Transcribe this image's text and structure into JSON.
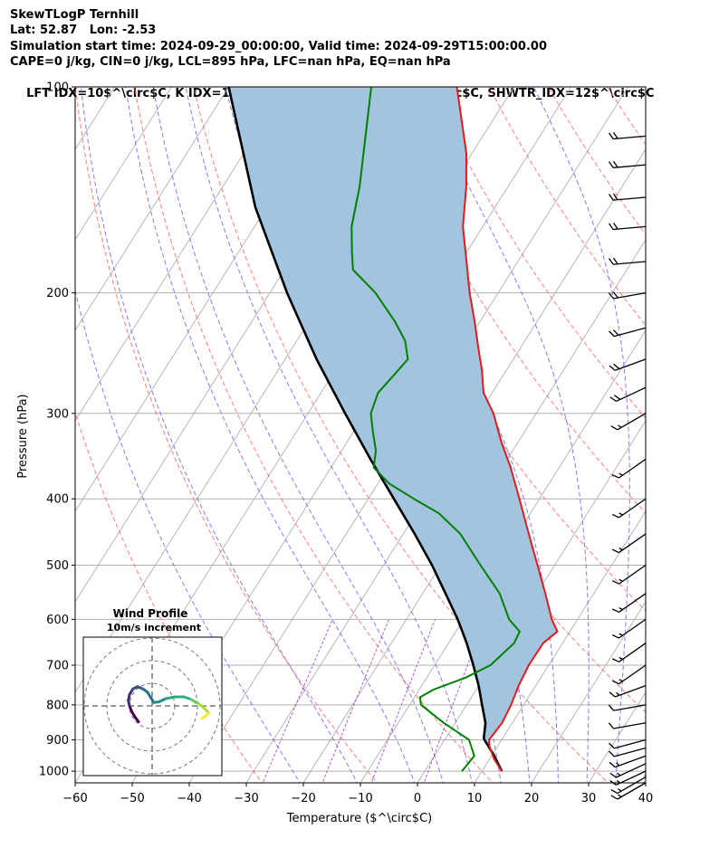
{
  "header": {
    "line1": "SkewTLogP Ternhill",
    "line2": "Lat: 52.87   Lon: -2.53",
    "line3": "Simulation start time: 2024-09-29_00:00:00, Valid time: 2024-09-29T15:00:00.00",
    "line4": "CAPE=0 j/kg, CIN=0 j/kg, LCL=895 hPa, LFC=nan hPa, EQ=nan hPa",
    "line5": "LFT IDX=10$^\\circ$C, K IDX=13$^\\circ$C, TOTAL TOTS=35$^\\circ$C, SHWTR_IDX=12$^\\circ$C"
  },
  "axes": {
    "xlabel": "Temperature ($^\\circ$C)",
    "ylabel": "Pressure (hPa)"
  },
  "inset": {
    "title_line1": "Wind Profile",
    "title_line2": "10m/s increment"
  },
  "colors": {
    "temperature": "#e31a1c",
    "dewpoint": "#008000",
    "parcel": "#000000",
    "cape_fill": "#a3c4de",
    "dry_adiabat": "#ff6666",
    "moist_adiabat": "#6666ff",
    "mixing_ratio": "#9933cc",
    "isotherm": "#b0b0b0"
  },
  "chart_data": {
    "type": "line",
    "x_scale": "skew",
    "y_scale": "log",
    "xlim": [
      -60,
      40
    ],
    "ylim": [
      1040,
      100
    ],
    "xticks": [
      "−60",
      "−50",
      "−40",
      "−30",
      "−20",
      "−10",
      "0",
      "10",
      "20",
      "30",
      "40"
    ],
    "yticks": [
      "100",
      "200",
      "300",
      "400",
      "500",
      "600",
      "700",
      "800",
      "900",
      "1000"
    ],
    "grid": true,
    "series": [
      {
        "key": "temperature",
        "points": [
          [
            1000,
            13.5
          ],
          [
            960,
            10.8
          ],
          [
            920,
            8.6
          ],
          [
            900,
            7.8
          ],
          [
            850,
            8.2
          ],
          [
            800,
            7.8
          ],
          [
            750,
            7.0
          ],
          [
            700,
            6.5
          ],
          [
            650,
            6.6
          ],
          [
            625,
            7.8
          ],
          [
            600,
            5.5
          ],
          [
            550,
            1.5
          ],
          [
            500,
            -3.0
          ],
          [
            450,
            -8.0
          ],
          [
            400,
            -13.5
          ],
          [
            360,
            -18.5
          ],
          [
            330,
            -23.0
          ],
          [
            300,
            -27.5
          ],
          [
            280,
            -31.5
          ],
          [
            260,
            -34.2
          ],
          [
            240,
            -37.5
          ],
          [
            220,
            -41.0
          ],
          [
            200,
            -45.0
          ],
          [
            180,
            -49.0
          ],
          [
            160,
            -53.5
          ],
          [
            140,
            -57.3
          ],
          [
            125,
            -61.0
          ],
          [
            100,
            -70.0
          ]
        ]
      },
      {
        "key": "dewpoint",
        "points": [
          [
            1000,
            6.5
          ],
          [
            950,
            7.0
          ],
          [
            900,
            4.3
          ],
          [
            850,
            -2.0
          ],
          [
            800,
            -8.0
          ],
          [
            780,
            -9.0
          ],
          [
            760,
            -7.5
          ],
          [
            730,
            -3.2
          ],
          [
            700,
            -0.2
          ],
          [
            650,
            1.5
          ],
          [
            625,
            1.2
          ],
          [
            600,
            -2.0
          ],
          [
            550,
            -6.5
          ],
          [
            500,
            -13.0
          ],
          [
            450,
            -20.0
          ],
          [
            420,
            -26.0
          ],
          [
            400,
            -32.0
          ],
          [
            380,
            -38.0
          ],
          [
            360,
            -42.5
          ],
          [
            340,
            -44.0
          ],
          [
            320,
            -46.5
          ],
          [
            300,
            -49.0
          ],
          [
            280,
            -50.0
          ],
          [
            260,
            -49.0
          ],
          [
            250,
            -48.5
          ],
          [
            235,
            -51.0
          ],
          [
            220,
            -55.0
          ],
          [
            200,
            -61.5
          ],
          [
            185,
            -68.0
          ],
          [
            175,
            -70.0
          ],
          [
            160,
            -73.0
          ],
          [
            140,
            -76.0
          ],
          [
            100,
            -85.0
          ]
        ]
      },
      {
        "key": "parcel",
        "points": [
          [
            1000,
            13.5
          ],
          [
            950,
            10.5
          ],
          [
            900,
            7.0
          ],
          [
            895,
            6.7
          ],
          [
            850,
            5.3
          ],
          [
            800,
            2.7
          ],
          [
            750,
            0.0
          ],
          [
            700,
            -3.2
          ],
          [
            650,
            -6.8
          ],
          [
            600,
            -11.0
          ],
          [
            550,
            -16.0
          ],
          [
            500,
            -21.5
          ],
          [
            450,
            -28.0
          ],
          [
            400,
            -35.5
          ],
          [
            350,
            -44.0
          ],
          [
            300,
            -53.5
          ],
          [
            250,
            -64.5
          ],
          [
            200,
            -77.0
          ],
          [
            150,
            -92.0
          ],
          [
            100,
            -110.0
          ]
        ]
      }
    ],
    "wind_barbs": [
      {
        "p": 1040,
        "speed_kt": 15,
        "dir_deg": 240
      },
      {
        "p": 1020,
        "speed_kt": 15,
        "dir_deg": 240
      },
      {
        "p": 1000,
        "speed_kt": 15,
        "dir_deg": 245
      },
      {
        "p": 975,
        "speed_kt": 15,
        "dir_deg": 245
      },
      {
        "p": 950,
        "speed_kt": 15,
        "dir_deg": 250
      },
      {
        "p": 925,
        "speed_kt": 10,
        "dir_deg": 255
      },
      {
        "p": 900,
        "speed_kt": 10,
        "dir_deg": 255
      },
      {
        "p": 850,
        "speed_kt": 10,
        "dir_deg": 260
      },
      {
        "p": 800,
        "speed_kt": 10,
        "dir_deg": 260
      },
      {
        "p": 750,
        "speed_kt": 15,
        "dir_deg": 250
      },
      {
        "p": 700,
        "speed_kt": 15,
        "dir_deg": 235
      },
      {
        "p": 650,
        "speed_kt": 15,
        "dir_deg": 235
      },
      {
        "p": 600,
        "speed_kt": 15,
        "dir_deg": 235
      },
      {
        "p": 550,
        "speed_kt": 15,
        "dir_deg": 235
      },
      {
        "p": 500,
        "speed_kt": 15,
        "dir_deg": 235
      },
      {
        "p": 450,
        "speed_kt": 15,
        "dir_deg": 235
      },
      {
        "p": 400,
        "speed_kt": 15,
        "dir_deg": 235
      },
      {
        "p": 350,
        "speed_kt": 15,
        "dir_deg": 235
      },
      {
        "p": 300,
        "speed_kt": 15,
        "dir_deg": 240
      },
      {
        "p": 275,
        "speed_kt": 20,
        "dir_deg": 245
      },
      {
        "p": 250,
        "speed_kt": 20,
        "dir_deg": 250
      },
      {
        "p": 225,
        "speed_kt": 20,
        "dir_deg": 255
      },
      {
        "p": 200,
        "speed_kt": 20,
        "dir_deg": 260
      },
      {
        "p": 180,
        "speed_kt": 20,
        "dir_deg": 265
      },
      {
        "p": 160,
        "speed_kt": 20,
        "dir_deg": 265
      },
      {
        "p": 145,
        "speed_kt": 20,
        "dir_deg": 265
      },
      {
        "p": 130,
        "speed_kt": 20,
        "dir_deg": 265
      },
      {
        "p": 118,
        "speed_kt": 20,
        "dir_deg": 265
      }
    ],
    "hodograph": {
      "ring_spacing_ms": 10,
      "points": [
        [
          -6,
          -7
        ],
        [
          -7.5,
          -5
        ],
        [
          -9,
          -2.5
        ],
        [
          -10,
          0
        ],
        [
          -10.5,
          2.5
        ],
        [
          -10,
          5
        ],
        [
          -8.5,
          7.5
        ],
        [
          -6.5,
          8.5
        ],
        [
          -4,
          7.5
        ],
        [
          -2,
          6
        ],
        [
          -0.5,
          3.5
        ],
        [
          0.8,
          1.5
        ],
        [
          3,
          1.8
        ],
        [
          6,
          3.2
        ],
        [
          10,
          4
        ],
        [
          14,
          4
        ],
        [
          17,
          3
        ],
        [
          19,
          1.8
        ],
        [
          20.5,
          1
        ],
        [
          22.5,
          -0.5
        ],
        [
          24,
          -2
        ],
        [
          25,
          -3
        ],
        [
          23.5,
          -4.5
        ],
        [
          22,
          -5.5
        ]
      ]
    }
  }
}
